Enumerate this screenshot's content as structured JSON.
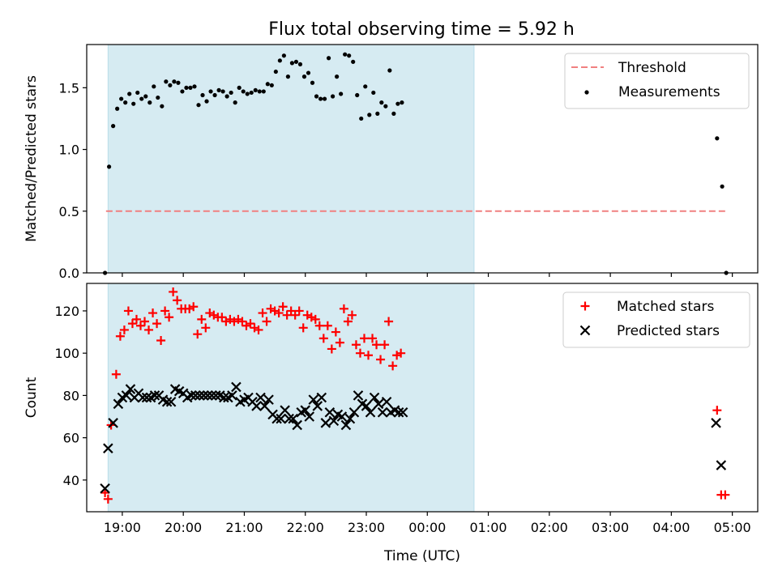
{
  "title": "Flux total observing time = 5.92 h",
  "chart_data": [
    {
      "type": "scatter",
      "ylabel": "Matched/Predicted stars",
      "xlabel": "",
      "xlim": [
        "18:25",
        "05:25"
      ],
      "ylim": [
        0,
        1.85
      ],
      "yticks": [
        "0.0",
        "0.5",
        "1.0",
        "1.5"
      ],
      "shaded_interval": [
        "18:46",
        "00:46"
      ],
      "threshold": {
        "name": "Threshold",
        "y": 0.5,
        "x_range": [
          "18:44",
          "04:55"
        ],
        "color": "#f08080"
      },
      "legend": {
        "position": "top-right",
        "entries": [
          "Threshold",
          "Measurements"
        ]
      },
      "series": [
        {
          "name": "Measurements",
          "marker": "dot",
          "color": "#000000",
          "points": [
            [
              "18:43",
              0.0
            ],
            [
              "18:47",
              0.86
            ],
            [
              "18:51",
              1.19
            ],
            [
              "18:55",
              1.33
            ],
            [
              "18:59",
              1.41
            ],
            [
              "19:03",
              1.38
            ],
            [
              "19:07",
              1.45
            ],
            [
              "19:11",
              1.37
            ],
            [
              "19:15",
              1.46
            ],
            [
              "19:19",
              1.41
            ],
            [
              "19:23",
              1.43
            ],
            [
              "19:27",
              1.38
            ],
            [
              "19:31",
              1.51
            ],
            [
              "19:35",
              1.42
            ],
            [
              "19:39",
              1.35
            ],
            [
              "19:43",
              1.55
            ],
            [
              "19:47",
              1.52
            ],
            [
              "19:51",
              1.55
            ],
            [
              "19:55",
              1.54
            ],
            [
              "19:59",
              1.47
            ],
            [
              "20:03",
              1.5
            ],
            [
              "20:07",
              1.5
            ],
            [
              "20:11",
              1.51
            ],
            [
              "20:15",
              1.36
            ],
            [
              "20:19",
              1.44
            ],
            [
              "20:23",
              1.39
            ],
            [
              "20:27",
              1.47
            ],
            [
              "20:31",
              1.44
            ],
            [
              "20:35",
              1.48
            ],
            [
              "20:39",
              1.47
            ],
            [
              "20:43",
              1.43
            ],
            [
              "20:47",
              1.46
            ],
            [
              "20:51",
              1.38
            ],
            [
              "20:55",
              1.5
            ],
            [
              "20:59",
              1.47
            ],
            [
              "21:03",
              1.45
            ],
            [
              "21:07",
              1.46
            ],
            [
              "21:11",
              1.48
            ],
            [
              "21:15",
              1.47
            ],
            [
              "21:19",
              1.47
            ],
            [
              "21:23",
              1.53
            ],
            [
              "21:27",
              1.52
            ],
            [
              "21:31",
              1.63
            ],
            [
              "21:35",
              1.72
            ],
            [
              "21:39",
              1.76
            ],
            [
              "21:43",
              1.59
            ],
            [
              "21:47",
              1.7
            ],
            [
              "21:51",
              1.71
            ],
            [
              "21:55",
              1.69
            ],
            [
              "21:59",
              1.59
            ],
            [
              "22:03",
              1.62
            ],
            [
              "22:07",
              1.54
            ],
            [
              "22:11",
              1.43
            ],
            [
              "22:15",
              1.41
            ],
            [
              "22:19",
              1.41
            ],
            [
              "22:23",
              1.74
            ],
            [
              "22:27",
              1.43
            ],
            [
              "22:31",
              1.59
            ],
            [
              "22:35",
              1.45
            ],
            [
              "22:39",
              1.77
            ],
            [
              "22:43",
              1.76
            ],
            [
              "22:47",
              1.71
            ],
            [
              "22:51",
              1.44
            ],
            [
              "22:55",
              1.25
            ],
            [
              "22:59",
              1.51
            ],
            [
              "23:03",
              1.28
            ],
            [
              "23:07",
              1.46
            ],
            [
              "23:11",
              1.29
            ],
            [
              "23:15",
              1.38
            ],
            [
              "23:19",
              1.35
            ],
            [
              "23:23",
              1.64
            ],
            [
              "23:27",
              1.29
            ],
            [
              "23:31",
              1.37
            ],
            [
              "23:35",
              1.38
            ],
            [
              "04:45",
              1.09
            ],
            [
              "04:50",
              0.7
            ],
            [
              "04:54",
              0.0
            ]
          ]
        }
      ]
    },
    {
      "type": "scatter",
      "ylabel": "Count",
      "xlabel": "Time (UTC)",
      "xlim": [
        "18:25",
        "05:25"
      ],
      "ylim": [
        25,
        133
      ],
      "yticks": [
        "40",
        "60",
        "80",
        "100",
        "120"
      ],
      "xticks": [
        "19:00",
        "20:00",
        "21:00",
        "22:00",
        "23:00",
        "00:00",
        "01:00",
        "02:00",
        "03:00",
        "04:00",
        "05:00"
      ],
      "shaded_interval": [
        "18:46",
        "00:46"
      ],
      "legend": {
        "position": "top-right",
        "entries": [
          "Matched stars",
          "Predicted stars"
        ]
      },
      "series": [
        {
          "name": "Matched stars",
          "marker": "plus",
          "color": "#ff0000",
          "points": [
            [
              "18:43",
              34
            ],
            [
              "18:46",
              31
            ],
            [
              "18:49",
              66
            ],
            [
              "18:54",
              90
            ],
            [
              "18:58",
              108
            ],
            [
              "19:02",
              111
            ],
            [
              "19:06",
              120
            ],
            [
              "19:10",
              114
            ],
            [
              "19:14",
              116
            ],
            [
              "19:18",
              113
            ],
            [
              "19:22",
              115
            ],
            [
              "19:26",
              111
            ],
            [
              "19:30",
              119
            ],
            [
              "19:34",
              114
            ],
            [
              "19:38",
              106
            ],
            [
              "19:42",
              120
            ],
            [
              "19:46",
              117
            ],
            [
              "19:50",
              129
            ],
            [
              "19:54",
              125
            ],
            [
              "19:58",
              121
            ],
            [
              "20:02",
              121
            ],
            [
              "20:06",
              121
            ],
            [
              "20:10",
              122
            ],
            [
              "20:14",
              109
            ],
            [
              "20:18",
              116
            ],
            [
              "20:22",
              112
            ],
            [
              "20:26",
              119
            ],
            [
              "20:30",
              118
            ],
            [
              "20:34",
              117
            ],
            [
              "20:38",
              117
            ],
            [
              "20:42",
              115
            ],
            [
              "20:46",
              116
            ],
            [
              "20:50",
              115
            ],
            [
              "20:54",
              116
            ],
            [
              "20:58",
              115
            ],
            [
              "21:02",
              113
            ],
            [
              "21:06",
              114
            ],
            [
              "21:10",
              112
            ],
            [
              "21:14",
              111
            ],
            [
              "21:18",
              119
            ],
            [
              "21:22",
              115
            ],
            [
              "21:26",
              121
            ],
            [
              "21:30",
              120
            ],
            [
              "21:34",
              119
            ],
            [
              "21:38",
              122
            ],
            [
              "21:42",
              118
            ],
            [
              "21:46",
              120
            ],
            [
              "21:50",
              118
            ],
            [
              "21:54",
              120
            ],
            [
              "21:58",
              112
            ],
            [
              "22:02",
              118
            ],
            [
              "22:06",
              117
            ],
            [
              "22:10",
              116
            ],
            [
              "22:14",
              113
            ],
            [
              "22:18",
              107
            ],
            [
              "22:22",
              113
            ],
            [
              "22:26",
              102
            ],
            [
              "22:30",
              110
            ],
            [
              "22:34",
              105
            ],
            [
              "22:38",
              121
            ],
            [
              "22:42",
              115
            ],
            [
              "22:46",
              118
            ],
            [
              "22:50",
              104
            ],
            [
              "22:54",
              100
            ],
            [
              "22:58",
              107
            ],
            [
              "23:02",
              99
            ],
            [
              "23:06",
              107
            ],
            [
              "23:10",
              104
            ],
            [
              "23:14",
              97
            ],
            [
              "23:18",
              104
            ],
            [
              "23:22",
              115
            ],
            [
              "23:26",
              94
            ],
            [
              "23:30",
              99
            ],
            [
              "23:34",
              100
            ],
            [
              "04:45",
              73
            ],
            [
              "04:49",
              33
            ],
            [
              "04:53",
              33
            ]
          ]
        },
        {
          "name": "Predicted stars",
          "marker": "x",
          "color": "#000000",
          "points": [
            [
              "18:43",
              36
            ],
            [
              "18:46",
              55
            ],
            [
              "18:51",
              67
            ],
            [
              "18:56",
              76
            ],
            [
              "19:00",
              79
            ],
            [
              "19:04",
              80
            ],
            [
              "19:08",
              83
            ],
            [
              "19:12",
              79
            ],
            [
              "19:16",
              81
            ],
            [
              "19:20",
              79
            ],
            [
              "19:24",
              79
            ],
            [
              "19:28",
              79
            ],
            [
              "19:32",
              80
            ],
            [
              "19:36",
              80
            ],
            [
              "19:40",
              78
            ],
            [
              "19:44",
              77
            ],
            [
              "19:48",
              77
            ],
            [
              "19:52",
              83
            ],
            [
              "19:56",
              82
            ],
            [
              "20:00",
              81
            ],
            [
              "20:04",
              79
            ],
            [
              "20:08",
              80
            ],
            [
              "20:12",
              80
            ],
            [
              "20:16",
              80
            ],
            [
              "20:20",
              80
            ],
            [
              "20:24",
              80
            ],
            [
              "20:28",
              80
            ],
            [
              "20:32",
              80
            ],
            [
              "20:36",
              80
            ],
            [
              "20:40",
              79
            ],
            [
              "20:44",
              79
            ],
            [
              "20:48",
              80
            ],
            [
              "20:52",
              84
            ],
            [
              "20:56",
              77
            ],
            [
              "21:00",
              78
            ],
            [
              "21:04",
              79
            ],
            [
              "21:08",
              77
            ],
            [
              "21:12",
              75
            ],
            [
              "21:16",
              79
            ],
            [
              "21:20",
              75
            ],
            [
              "21:24",
              78
            ],
            [
              "21:28",
              71
            ],
            [
              "21:32",
              69
            ],
            [
              "21:36",
              69
            ],
            [
              "21:40",
              73
            ],
            [
              "21:44",
              69
            ],
            [
              "21:48",
              69
            ],
            [
              "21:52",
              66
            ],
            [
              "21:56",
              72
            ],
            [
              "22:00",
              73
            ],
            [
              "22:04",
              70
            ],
            [
              "22:08",
              78
            ],
            [
              "22:12",
              75
            ],
            [
              "22:16",
              79
            ],
            [
              "22:20",
              67
            ],
            [
              "22:24",
              72
            ],
            [
              "22:28",
              68
            ],
            [
              "22:32",
              71
            ],
            [
              "22:36",
              70
            ],
            [
              "22:40",
              66
            ],
            [
              "22:44",
              69
            ],
            [
              "22:48",
              72
            ],
            [
              "22:52",
              80
            ],
            [
              "22:56",
              76
            ],
            [
              "23:00",
              75
            ],
            [
              "23:04",
              72
            ],
            [
              "23:08",
              79
            ],
            [
              "23:12",
              76
            ],
            [
              "23:16",
              72
            ],
            [
              "23:20",
              77
            ],
            [
              "23:24",
              72
            ],
            [
              "23:28",
              73
            ],
            [
              "23:32",
              72
            ],
            [
              "23:36",
              72
            ],
            [
              "04:44",
              67
            ],
            [
              "04:49",
              47
            ]
          ]
        }
      ]
    }
  ]
}
